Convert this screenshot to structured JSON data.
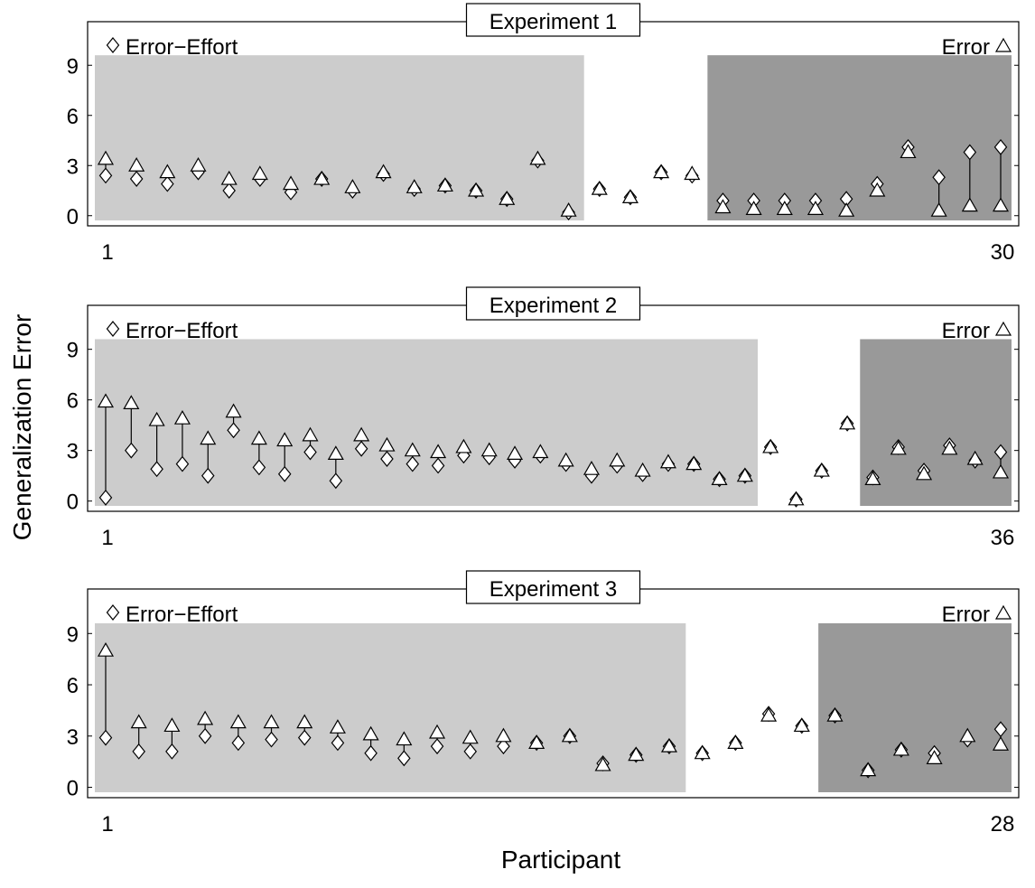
{
  "figure": {
    "ylabel": "Generalization Error",
    "xlabel": "Participant",
    "colors": {
      "light_region": "#cccccc",
      "dark_region": "#999999",
      "marker_fill": "#ffffff",
      "stroke": "#000000"
    }
  },
  "chart_data": [
    {
      "type": "scatter",
      "title": "Experiment 1",
      "legend": {
        "left": "Error−Effort",
        "right": "Error",
        "left_marker": "diamond",
        "right_marker": "triangle"
      },
      "y_ticks": [
        "0",
        "3",
        "6",
        "9"
      ],
      "ylim": [
        -0.5,
        11.5
      ],
      "x_first_label": "1",
      "x_last_label": "30",
      "n": 30,
      "regions": [
        {
          "shade": "light",
          "from": 1,
          "to": 16
        },
        {
          "shade": "dark",
          "from": 21,
          "to": 30
        }
      ],
      "series": [
        {
          "name": "Error−Effort",
          "marker": "diamond",
          "values": [
            2.4,
            2.2,
            1.9,
            2.6,
            1.5,
            2.2,
            1.4,
            2.2,
            1.5,
            2.5,
            1.6,
            1.8,
            1.5,
            1.0,
            3.3,
            0.2,
            1.6,
            1.1,
            2.6,
            2.4,
            0.9,
            0.9,
            0.9,
            0.9,
            1.0,
            1.9,
            4.1,
            2.3,
            3.8,
            4.1
          ]
        },
        {
          "name": "Error",
          "marker": "triangle",
          "values": [
            3.4,
            3.0,
            2.6,
            3.0,
            2.2,
            2.5,
            1.9,
            2.2,
            1.7,
            2.6,
            1.7,
            1.8,
            1.5,
            1.0,
            3.4,
            0.3,
            1.6,
            1.1,
            2.6,
            2.5,
            0.5,
            0.4,
            0.4,
            0.4,
            0.3,
            1.5,
            3.8,
            0.3,
            0.6,
            0.6
          ]
        }
      ]
    },
    {
      "type": "scatter",
      "title": "Experiment 2",
      "legend": {
        "left": "Error−Effort",
        "right": "Error",
        "left_marker": "diamond",
        "right_marker": "triangle"
      },
      "y_ticks": [
        "0",
        "3",
        "6",
        "9"
      ],
      "ylim": [
        -0.5,
        11.5
      ],
      "x_first_label": "1",
      "x_last_label": "36",
      "n": 36,
      "regions": [
        {
          "shade": "light",
          "from": 1,
          "to": 26
        },
        {
          "shade": "dark",
          "from": 31,
          "to": 36
        }
      ],
      "series": [
        {
          "name": "Error−Effort",
          "marker": "diamond",
          "values": [
            0.2,
            3.0,
            1.9,
            2.2,
            1.5,
            4.2,
            2.0,
            1.6,
            2.9,
            1.2,
            3.1,
            2.5,
            2.2,
            2.1,
            2.7,
            2.6,
            2.4,
            2.7,
            2.2,
            1.5,
            2.1,
            1.6,
            2.2,
            2.2,
            1.3,
            1.5,
            3.2,
            0.1,
            1.8,
            4.6,
            1.4,
            3.2,
            1.8,
            3.3,
            2.4,
            2.9
          ]
        },
        {
          "name": "Error",
          "marker": "triangle",
          "values": [
            5.9,
            5.8,
            4.8,
            4.9,
            3.7,
            5.3,
            3.7,
            3.6,
            3.9,
            2.8,
            3.9,
            3.3,
            3.0,
            2.9,
            3.2,
            3.0,
            2.8,
            2.9,
            2.4,
            1.9,
            2.4,
            1.8,
            2.3,
            2.2,
            1.3,
            1.5,
            3.2,
            0.1,
            1.8,
            4.6,
            1.3,
            3.1,
            1.6,
            3.1,
            2.5,
            1.7
          ]
        }
      ]
    },
    {
      "type": "scatter",
      "title": "Experiment 3",
      "legend": {
        "left": "Error−Effort",
        "right": "Error",
        "left_marker": "diamond",
        "right_marker": "triangle"
      },
      "y_ticks": [
        "0",
        "3",
        "6",
        "9"
      ],
      "ylim": [
        -0.5,
        11.5
      ],
      "x_first_label": "1",
      "x_last_label": "28",
      "n": 28,
      "regions": [
        {
          "shade": "light",
          "from": 1,
          "to": 18
        },
        {
          "shade": "dark",
          "from": 23,
          "to": 28
        }
      ],
      "series": [
        {
          "name": "Error−Effort",
          "marker": "diamond",
          "values": [
            2.9,
            2.1,
            2.1,
            3.0,
            2.6,
            2.8,
            2.9,
            2.6,
            2.0,
            1.7,
            2.4,
            2.1,
            2.4,
            2.6,
            3.0,
            1.4,
            1.9,
            2.4,
            2.0,
            2.6,
            4.3,
            3.6,
            4.2,
            1.0,
            2.2,
            2.0,
            2.8,
            3.4
          ]
        },
        {
          "name": "Error",
          "marker": "triangle",
          "values": [
            8.0,
            3.8,
            3.6,
            4.0,
            3.8,
            3.8,
            3.8,
            3.5,
            3.1,
            2.8,
            3.2,
            2.9,
            3.0,
            2.6,
            3.0,
            1.3,
            1.9,
            2.4,
            2.0,
            2.6,
            4.2,
            3.6,
            4.2,
            1.0,
            2.2,
            1.7,
            3.0,
            2.5
          ]
        }
      ]
    }
  ]
}
